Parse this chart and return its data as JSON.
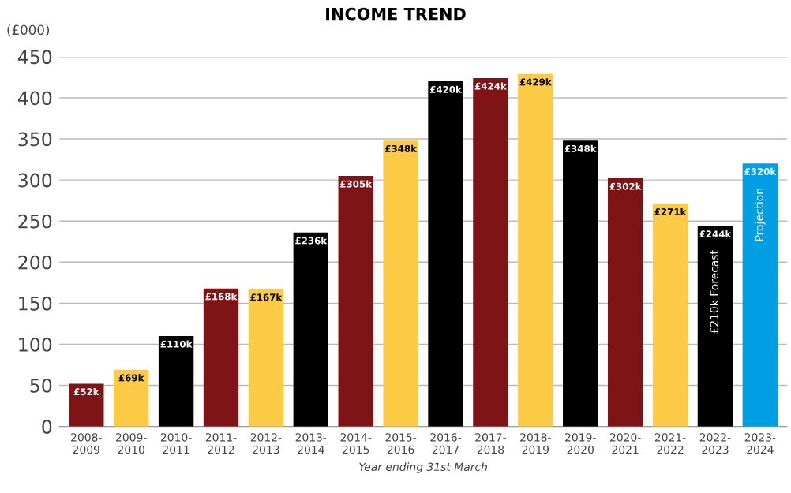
{
  "chart_data": {
    "type": "bar",
    "title": "INCOME TREND",
    "ylabel": "(£000)",
    "xlabel": "Year ending 31st March",
    "categories": [
      "2008-\n2009",
      "2009-\n2010",
      "2010-\n2011",
      "2011-\n2012",
      "2012-\n2013",
      "2013-\n2014",
      "2014-\n2015",
      "2015-\n2016",
      "2016-\n2017",
      "2017-\n2018",
      "2018-\n2019",
      "2019-\n2020",
      "2020-\n2021",
      "2021-\n2022",
      "2022-\n2023",
      "2023-\n2024"
    ],
    "values": [
      52,
      69,
      110,
      168,
      167,
      236,
      305,
      348,
      420,
      424,
      429,
      348,
      302,
      271,
      244,
      320
    ],
    "colors": [
      "#7f1416",
      "#fccb45",
      "#000000",
      "#7f1416",
      "#fccb45",
      "#000000",
      "#7f1416",
      "#fccb45",
      "#000000",
      "#7f1416",
      "#fccb45",
      "#000000",
      "#7f1416",
      "#fccb45",
      "#000000",
      "#009fe3"
    ],
    "value_labels": [
      "£52k",
      "£69k",
      "£110k",
      "£168k",
      "£167k",
      "£236k",
      "£305k",
      "£348k",
      "£420k",
      "£424k",
      "£429k",
      "£348k",
      "£302k",
      "£271k",
      "£244k",
      "£320k"
    ],
    "annotations": [
      "£210k Forecast",
      "Projection"
    ],
    "ylim": [
      0,
      450
    ],
    "yticks": [
      0,
      50,
      100,
      150,
      200,
      250,
      300,
      350,
      400,
      450
    ],
    "grid": "y"
  }
}
